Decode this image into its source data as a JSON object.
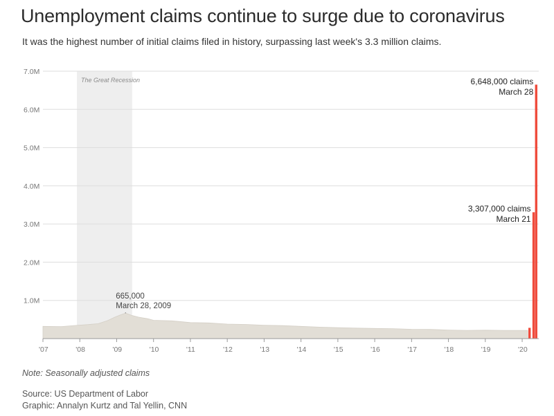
{
  "title": "Unemployment claims continue to surge due to coronavirus",
  "subtitle": "It was the highest number of initial claims filed in history, surpassing last week's 3.3 million claims.",
  "note": "Note: Seasonally adjusted claims",
  "source": "Source: US Department of Labor",
  "credit": "Graphic: Annalyn Kurtz and Tal Yellin, CNN",
  "colors": {
    "area": "#e2ded6",
    "bars": "#ef4b3c",
    "recession": "#eeeeee",
    "grid": "#dddddd"
  },
  "chart_data": {
    "type": "area",
    "title": "Unemployment claims continue to surge due to coronavirus",
    "xlabel": "",
    "ylabel": "",
    "xlim": [
      2007.0,
      2020.45
    ],
    "ylim": [
      0,
      7000000
    ],
    "grid": true,
    "y_ticks": [
      {
        "value": 1000000,
        "label": "1.0M"
      },
      {
        "value": 2000000,
        "label": "2.0M"
      },
      {
        "value": 3000000,
        "label": "3.0M"
      },
      {
        "value": 4000000,
        "label": "4.0M"
      },
      {
        "value": 5000000,
        "label": "5.0M"
      },
      {
        "value": 6000000,
        "label": "6.0M"
      },
      {
        "value": 7000000,
        "label": "7.0M"
      }
    ],
    "x_ticks": [
      {
        "value": 2007,
        "label": "'07"
      },
      {
        "value": 2008,
        "label": "'08"
      },
      {
        "value": 2009,
        "label": "'09"
      },
      {
        "value": 2010,
        "label": "'10"
      },
      {
        "value": 2011,
        "label": "'11"
      },
      {
        "value": 2012,
        "label": "'12"
      },
      {
        "value": 2013,
        "label": "'13"
      },
      {
        "value": 2014,
        "label": "'14"
      },
      {
        "value": 2015,
        "label": "'15"
      },
      {
        "value": 2016,
        "label": "'16"
      },
      {
        "value": 2017,
        "label": "'17"
      },
      {
        "value": 2018,
        "label": "'18"
      },
      {
        "value": 2019,
        "label": "'19"
      },
      {
        "value": 2020,
        "label": "'20"
      }
    ],
    "recession": {
      "label": "The Great Recession",
      "start": 2007.92,
      "end": 2009.42
    },
    "series": [
      {
        "kind": "area",
        "points": [
          [
            2007.0,
            320000
          ],
          [
            2007.5,
            315000
          ],
          [
            2007.9,
            345000
          ],
          [
            2008.2,
            365000
          ],
          [
            2008.5,
            390000
          ],
          [
            2008.75,
            470000
          ],
          [
            2008.95,
            560000
          ],
          [
            2009.1,
            620000
          ],
          [
            2009.24,
            665000
          ],
          [
            2009.4,
            610000
          ],
          [
            2009.6,
            560000
          ],
          [
            2009.85,
            520000
          ],
          [
            2010.0,
            480000
          ],
          [
            2010.5,
            465000
          ],
          [
            2011.0,
            420000
          ],
          [
            2011.5,
            410000
          ],
          [
            2012.0,
            380000
          ],
          [
            2012.5,
            370000
          ],
          [
            2013.0,
            350000
          ],
          [
            2013.5,
            340000
          ],
          [
            2014.0,
            320000
          ],
          [
            2014.5,
            300000
          ],
          [
            2015.0,
            285000
          ],
          [
            2015.5,
            275000
          ],
          [
            2016.0,
            265000
          ],
          [
            2016.5,
            260000
          ],
          [
            2017.0,
            245000
          ],
          [
            2017.5,
            240000
          ],
          [
            2018.0,
            225000
          ],
          [
            2018.5,
            215000
          ],
          [
            2019.0,
            220000
          ],
          [
            2019.5,
            215000
          ],
          [
            2020.0,
            215000
          ],
          [
            2020.15,
            215000
          ]
        ]
      },
      {
        "kind": "bars",
        "points": [
          [
            2020.2,
            282000
          ],
          [
            2020.31,
            3307000
          ],
          [
            2020.38,
            6648000
          ]
        ]
      }
    ],
    "annotations": [
      {
        "x": 2009.24,
        "y": 665000,
        "line1": "665,000",
        "line2": "March 28, 2009"
      },
      {
        "x": 2020.31,
        "y": 3307000,
        "line1": "3,307,000 claims",
        "line2": "March 21"
      },
      {
        "x": 2020.38,
        "y": 6648000,
        "line1": "6,648,000 claims",
        "line2": "March 28"
      }
    ]
  }
}
